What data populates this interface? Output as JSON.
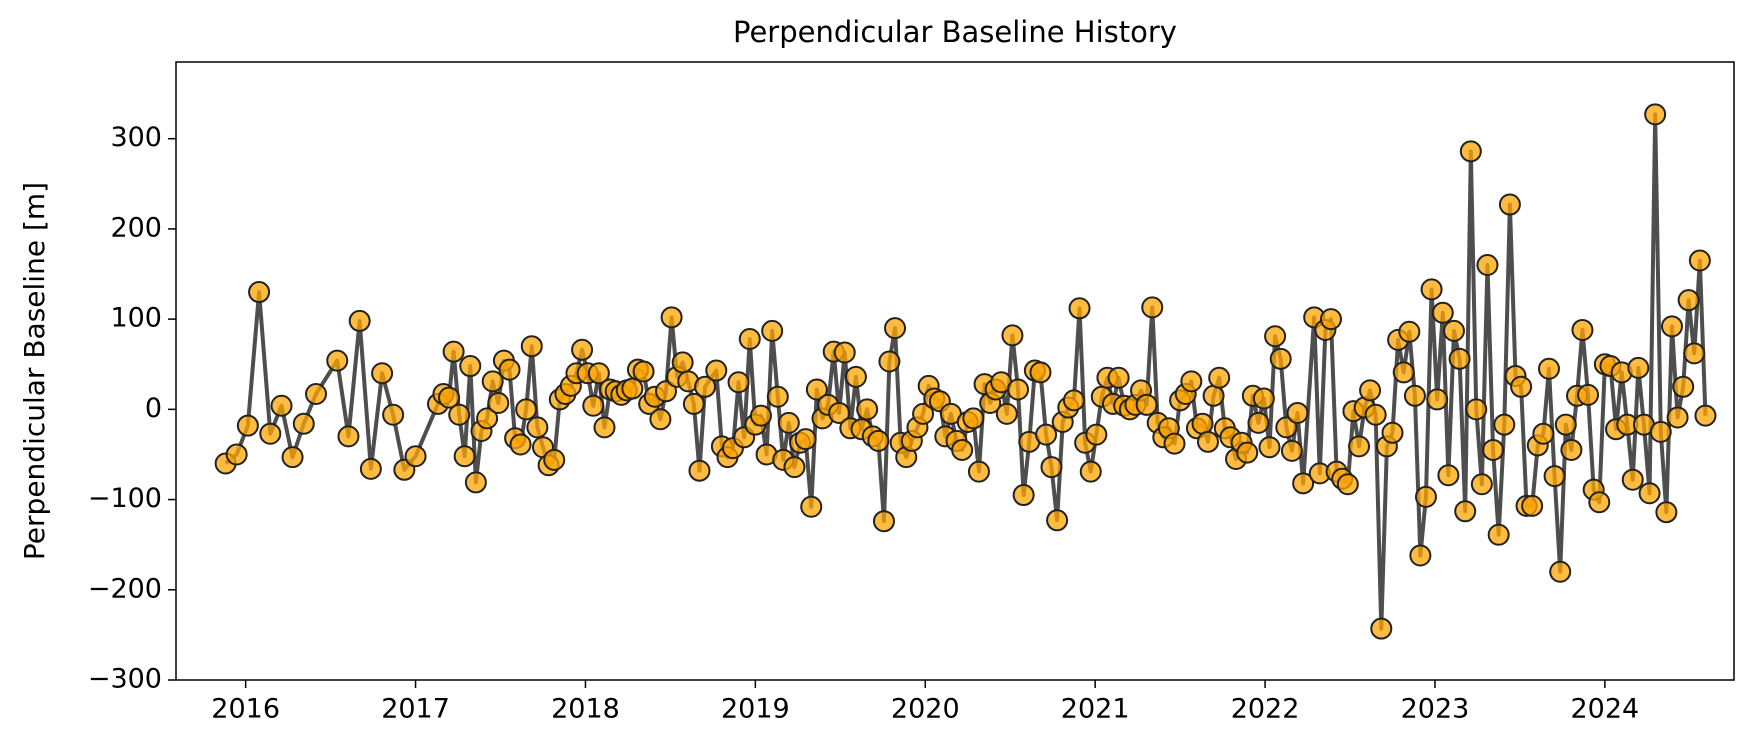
{
  "chart_data": {
    "type": "line",
    "title": "Perpendicular Baseline History",
    "y_label": "Perpendicular Baseline [m]",
    "color": "#ffa500",
    "line_color": "#444444",
    "xlim": [
      2015.59,
      2024.76
    ],
    "xticks": [
      2016,
      2017,
      2018,
      2019,
      2020,
      2021,
      2022,
      2023,
      2024
    ],
    "ylim": [
      -300,
      385
    ],
    "yticks": [
      {
        "value": -300,
        "label": "−300"
      },
      {
        "value": -200,
        "label": "−200"
      },
      {
        "value": -100,
        "label": "−100"
      },
      0,
      100,
      200,
      300
    ],
    "grid": false,
    "x": [
      2015.882,
      2015.947,
      2016.013,
      2016.079,
      2016.145,
      2016.211,
      2016.276,
      2016.342,
      2016.414,
      2016.539,
      2016.605,
      2016.671,
      2016.737,
      2016.803,
      2016.868,
      2016.934,
      2017.0,
      2017.132,
      2017.164,
      2017.197,
      2017.224,
      2017.257,
      2017.289,
      2017.322,
      2017.355,
      2017.388,
      2017.421,
      2017.454,
      2017.487,
      2017.52,
      2017.553,
      2017.586,
      2017.618,
      2017.651,
      2017.684,
      2017.717,
      2017.75,
      2017.783,
      2017.816,
      2017.849,
      2017.882,
      2017.914,
      2017.947,
      2017.98,
      2018.013,
      2018.046,
      2018.079,
      2018.112,
      2018.145,
      2018.178,
      2018.211,
      2018.243,
      2018.276,
      2018.309,
      2018.342,
      2018.375,
      2018.408,
      2018.441,
      2018.474,
      2018.507,
      2018.539,
      2018.572,
      2018.605,
      2018.638,
      2018.671,
      2018.704,
      2018.77,
      2018.803,
      2018.836,
      2018.868,
      2018.901,
      2018.934,
      2018.967,
      2019.0,
      2019.033,
      2019.066,
      2019.099,
      2019.132,
      2019.164,
      2019.197,
      2019.23,
      2019.263,
      2019.296,
      2019.329,
      2019.362,
      2019.395,
      2019.428,
      2019.461,
      2019.493,
      2019.526,
      2019.559,
      2019.592,
      2019.625,
      2019.658,
      2019.691,
      2019.724,
      2019.757,
      2019.789,
      2019.822,
      2019.855,
      2019.888,
      2019.921,
      2019.954,
      2019.987,
      2020.02,
      2020.053,
      2020.086,
      2020.118,
      2020.151,
      2020.184,
      2020.217,
      2020.25,
      2020.283,
      2020.316,
      2020.349,
      2020.382,
      2020.414,
      2020.447,
      2020.48,
      2020.513,
      2020.546,
      2020.579,
      2020.612,
      2020.645,
      2020.678,
      2020.711,
      2020.743,
      2020.776,
      2020.809,
      2020.842,
      2020.875,
      2020.908,
      2020.941,
      2020.974,
      2021.007,
      2021.039,
      2021.072,
      2021.105,
      2021.138,
      2021.171,
      2021.204,
      2021.237,
      2021.27,
      2021.303,
      2021.336,
      2021.368,
      2021.401,
      2021.434,
      2021.467,
      2021.5,
      2021.533,
      2021.566,
      2021.599,
      2021.632,
      2021.664,
      2021.697,
      2021.73,
      2021.763,
      2021.796,
      2021.829,
      2021.862,
      2021.895,
      2021.928,
      2021.961,
      2021.993,
      2022.026,
      2022.059,
      2022.092,
      2022.125,
      2022.158,
      2022.191,
      2022.224,
      2022.289,
      2022.322,
      2022.355,
      2022.388,
      2022.421,
      2022.454,
      2022.487,
      2022.52,
      2022.553,
      2022.586,
      2022.618,
      2022.651,
      2022.684,
      2022.717,
      2022.75,
      2022.783,
      2022.816,
      2022.849,
      2022.882,
      2022.914,
      2022.947,
      2022.98,
      2023.013,
      2023.046,
      2023.079,
      2023.112,
      2023.145,
      2023.178,
      2023.211,
      2023.243,
      2023.276,
      2023.309,
      2023.342,
      2023.375,
      2023.408,
      2023.441,
      2023.474,
      2023.507,
      2023.539,
      2023.572,
      2023.605,
      2023.638,
      2023.671,
      2023.704,
      2023.737,
      2023.77,
      2023.803,
      2023.836,
      2023.868,
      2023.901,
      2023.934,
      2023.967,
      2024.0,
      2024.033,
      2024.066,
      2024.099,
      2024.132,
      2024.164,
      2024.197,
      2024.23,
      2024.263,
      2024.296,
      2024.329,
      2024.362,
      2024.395,
      2024.428,
      2024.461,
      2024.493,
      2024.526,
      2024.559,
      2024.592
    ],
    "values": [
      -60,
      -50,
      -18,
      130,
      -27,
      4,
      -53,
      -16,
      17,
      54,
      -30,
      98,
      -66,
      40,
      -6,
      -67,
      -52,
      6,
      17,
      13,
      64,
      -6,
      -52,
      48,
      -81,
      -24,
      -10,
      31,
      7,
      54,
      44,
      -32,
      -39,
      0,
      70,
      -20,
      -42,
      -62,
      -56,
      11,
      17,
      26,
      40,
      66,
      40,
      4,
      40,
      -20,
      22,
      20,
      16,
      21,
      23,
      44,
      42,
      6,
      14,
      -11,
      20,
      102,
      36,
      52,
      31,
      6,
      -68,
      25,
      43,
      -41,
      -53,
      -43,
      30,
      -31,
      78,
      -17,
      -7,
      -50,
      87,
      14,
      -56,
      -15,
      -64,
      -37,
      -33,
      -108,
      22,
      -10,
      5,
      64,
      -4,
      63,
      -21,
      36,
      -22,
      0,
      -30,
      -35,
      -124,
      53,
      90,
      -37,
      -53,
      -35,
      -20,
      -5,
      26,
      12,
      9,
      -30,
      -5,
      -35,
      -45,
      -14,
      -10,
      -69,
      28,
      7,
      22,
      30,
      -5,
      82,
      22,
      -95,
      -36,
      43,
      41,
      -28,
      -64,
      -123,
      -14,
      2,
      10,
      112,
      -37,
      -69,
      -28,
      14,
      35,
      6,
      35,
      4,
      0,
      5,
      21,
      5,
      113,
      -15,
      -31,
      -21,
      -38,
      10,
      17,
      31,
      -21,
      -16,
      -36,
      15,
      35,
      -21,
      -31,
      -55,
      -37,
      -48,
      15,
      -15,
      12,
      -42,
      81,
      56,
      -20,
      -46,
      -4,
      -82,
      102,
      -71,
      88,
      100,
      -69,
      -77,
      -83,
      -2,
      -41,
      2,
      21,
      -6,
      -243,
      -41,
      -26,
      77,
      41,
      86,
      15,
      -162,
      -97,
      133,
      11,
      107,
      -73,
      87,
      56,
      -113,
      286,
      0,
      -83,
      160,
      -45,
      -139,
      -17,
      227,
      37,
      25,
      -107,
      -107,
      -40,
      -27,
      45,
      -74,
      -180,
      -17,
      -45,
      15,
      88,
      16,
      -89,
      -103,
      50,
      48,
      -22,
      41,
      -17,
      -78,
      46,
      -17,
      -93,
      327,
      -25,
      -114,
      92,
      -9,
      25,
      121,
      62,
      165,
      -7
    ]
  }
}
